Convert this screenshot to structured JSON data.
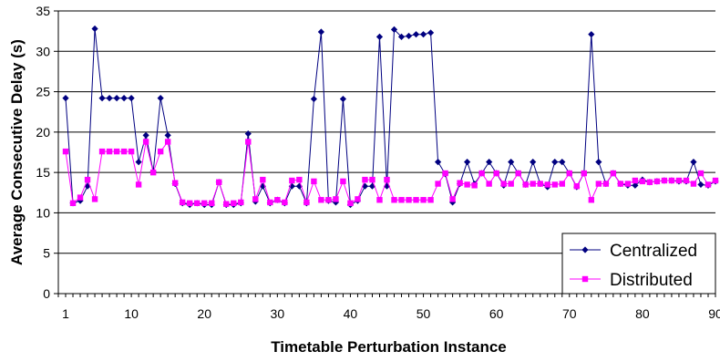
{
  "chart_data": {
    "type": "line",
    "xlabel": "Timetable Perturbation Instance",
    "ylabel": "Average Consecutive Delay (s)",
    "xlim": [
      0,
      90
    ],
    "ylim": [
      0,
      35
    ],
    "x_ticks": [
      1,
      10,
      20,
      30,
      40,
      50,
      60,
      70,
      80,
      90
    ],
    "y_ticks": [
      0,
      5,
      10,
      15,
      20,
      25,
      30,
      35
    ],
    "grid": "horizontal",
    "legend_position": "bottom-right",
    "x": [
      1,
      2,
      3,
      4,
      5,
      6,
      7,
      8,
      9,
      10,
      11,
      12,
      13,
      14,
      15,
      16,
      17,
      18,
      19,
      20,
      21,
      22,
      23,
      24,
      25,
      26,
      27,
      28,
      29,
      30,
      31,
      32,
      33,
      34,
      35,
      36,
      37,
      38,
      39,
      40,
      41,
      42,
      43,
      44,
      45,
      46,
      47,
      48,
      49,
      50,
      51,
      52,
      53,
      54,
      55,
      56,
      57,
      58,
      59,
      60,
      61,
      62,
      63,
      64,
      65,
      66,
      67,
      68,
      69,
      70,
      71,
      72,
      73,
      74,
      75,
      76,
      77,
      78,
      79,
      80,
      81,
      82,
      83,
      84,
      85,
      86,
      87,
      88,
      89,
      90
    ],
    "series": [
      {
        "name": "Centralized",
        "color": "#000080",
        "marker": "diamond",
        "values": [
          24.2,
          11.2,
          11.5,
          13.3,
          32.8,
          24.2,
          24.2,
          24.2,
          24.2,
          24.2,
          16.3,
          19.6,
          15.1,
          24.2,
          19.6,
          13.6,
          11.2,
          11.0,
          11.2,
          11.0,
          11.0,
          13.8,
          11.0,
          11.0,
          11.2,
          19.8,
          11.4,
          13.3,
          11.2,
          11.6,
          11.2,
          13.3,
          13.3,
          11.2,
          24.1,
          32.4,
          11.5,
          11.3,
          24.1,
          11.0,
          11.5,
          13.3,
          13.3,
          31.8,
          13.3,
          32.7,
          31.8,
          31.9,
          32.1,
          32.1,
          32.3,
          16.3,
          14.8,
          11.3,
          13.6,
          16.3,
          13.6,
          14.9,
          16.3,
          14.9,
          13.4,
          16.3,
          14.9,
          13.5,
          16.3,
          13.6,
          13.2,
          16.3,
          16.3,
          14.9,
          13.2,
          14.9,
          32.1,
          16.3,
          13.6,
          14.9,
          13.6,
          13.4,
          13.4,
          14.1,
          13.8,
          13.9,
          14.0,
          14.0,
          13.9,
          13.9,
          16.3,
          13.5,
          13.4,
          13.9
        ]
      },
      {
        "name": "Distributed",
        "color": "#ff00ff",
        "marker": "square",
        "values": [
          17.6,
          11.2,
          11.9,
          14.1,
          11.7,
          17.6,
          17.6,
          17.6,
          17.6,
          17.6,
          13.5,
          18.8,
          15.0,
          17.6,
          18.8,
          13.7,
          11.3,
          11.2,
          11.2,
          11.2,
          11.2,
          13.8,
          11.1,
          11.2,
          11.3,
          18.8,
          11.7,
          14.1,
          11.3,
          11.6,
          11.3,
          14.0,
          14.1,
          11.3,
          13.9,
          11.6,
          11.6,
          11.7,
          13.9,
          11.2,
          11.7,
          14.1,
          14.1,
          11.6,
          14.1,
          11.6,
          11.6,
          11.6,
          11.6,
          11.6,
          11.6,
          13.6,
          14.9,
          11.7,
          13.7,
          13.5,
          13.4,
          14.9,
          13.6,
          14.9,
          13.6,
          13.6,
          14.9,
          13.5,
          13.6,
          13.6,
          13.5,
          13.5,
          13.6,
          14.9,
          13.3,
          14.9,
          11.6,
          13.6,
          13.6,
          14.9,
          13.6,
          13.6,
          14.0,
          13.9,
          13.8,
          13.9,
          14.0,
          14.0,
          14.0,
          14.0,
          13.6,
          14.9,
          13.5,
          14.0
        ]
      }
    ]
  }
}
